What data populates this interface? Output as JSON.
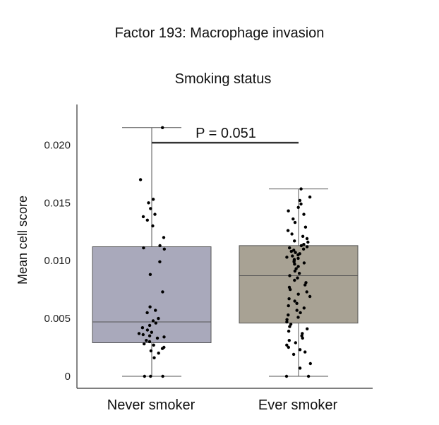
{
  "chart_data": {
    "type": "box",
    "title": "Factor 193: Macrophage invasion",
    "subtitle": "Smoking status",
    "xlabel": "",
    "ylabel": "Mean cell score",
    "ylim": [
      0,
      0.0235
    ],
    "yticks": [
      0,
      0.005,
      0.01,
      0.015,
      0.02
    ],
    "ytick_labels": [
      "0",
      "0.005",
      "0.010",
      "0.015",
      "0.020"
    ],
    "categories": [
      "Never smoker",
      "Ever smoker"
    ],
    "colors": {
      "Never smoker": "#a9a9bb",
      "Ever smoker": "#a8a294"
    },
    "boxes": [
      {
        "name": "Never smoker",
        "min": 0,
        "q1": 0.0029,
        "median": 0.0047,
        "q3": 0.0112,
        "max": 0.0215
      },
      {
        "name": "Ever smoker",
        "min": 0,
        "q1": 0.0046,
        "median": 0.0087,
        "q3": 0.0113,
        "max": 0.0162
      }
    ],
    "points": [
      [
        0.0215,
        0.017,
        0.0153,
        0.015,
        0.0145,
        0.014,
        0.0138,
        0.0135,
        0.013,
        0.012,
        0.0113,
        0.0111,
        0.011,
        0.0099,
        0.0088,
        0.0073,
        0.006,
        0.0057,
        0.0055,
        0.005,
        0.0048,
        0.0046,
        0.0044,
        0.0042,
        0.004,
        0.0038,
        0.0037,
        0.0036,
        0.0035,
        0.0034,
        0.0033,
        0.0031,
        0.003,
        0.0028,
        0.0027,
        0.0025,
        0.0024,
        0.0022,
        0.002,
        0.0016,
        0,
        0,
        0
      ],
      [
        0.0162,
        0.0155,
        0.0152,
        0.0149,
        0.0146,
        0.0143,
        0.014,
        0.0136,
        0.0133,
        0.0129,
        0.0126,
        0.0123,
        0.0121,
        0.0119,
        0.0117,
        0.0116,
        0.0114,
        0.0113,
        0.0112,
        0.0111,
        0.011,
        0.0109,
        0.0108,
        0.0107,
        0.0106,
        0.0105,
        0.0104,
        0.0103,
        0.0102,
        0.0101,
        0.01,
        0.0099,
        0.0098,
        0.0097,
        0.0095,
        0.0093,
        0.0091,
        0.0089,
        0.0087,
        0.0085,
        0.0083,
        0.0081,
        0.0079,
        0.0077,
        0.0075,
        0.0073,
        0.0071,
        0.0069,
        0.0067,
        0.0065,
        0.0063,
        0.0061,
        0.0059,
        0.0057,
        0.0055,
        0.0053,
        0.0051,
        0.0049,
        0.0047,
        0.0045,
        0.0043,
        0.0041,
        0.0039,
        0.0037,
        0.0035,
        0.0033,
        0.0031,
        0.0029,
        0.0027,
        0.0025,
        0.0023,
        0.0021,
        0.0019,
        0.0011,
        0.0007,
        0,
        0
      ]
    ],
    "annotation": {
      "label": "P = 0.051",
      "y": 0.0202
    }
  }
}
